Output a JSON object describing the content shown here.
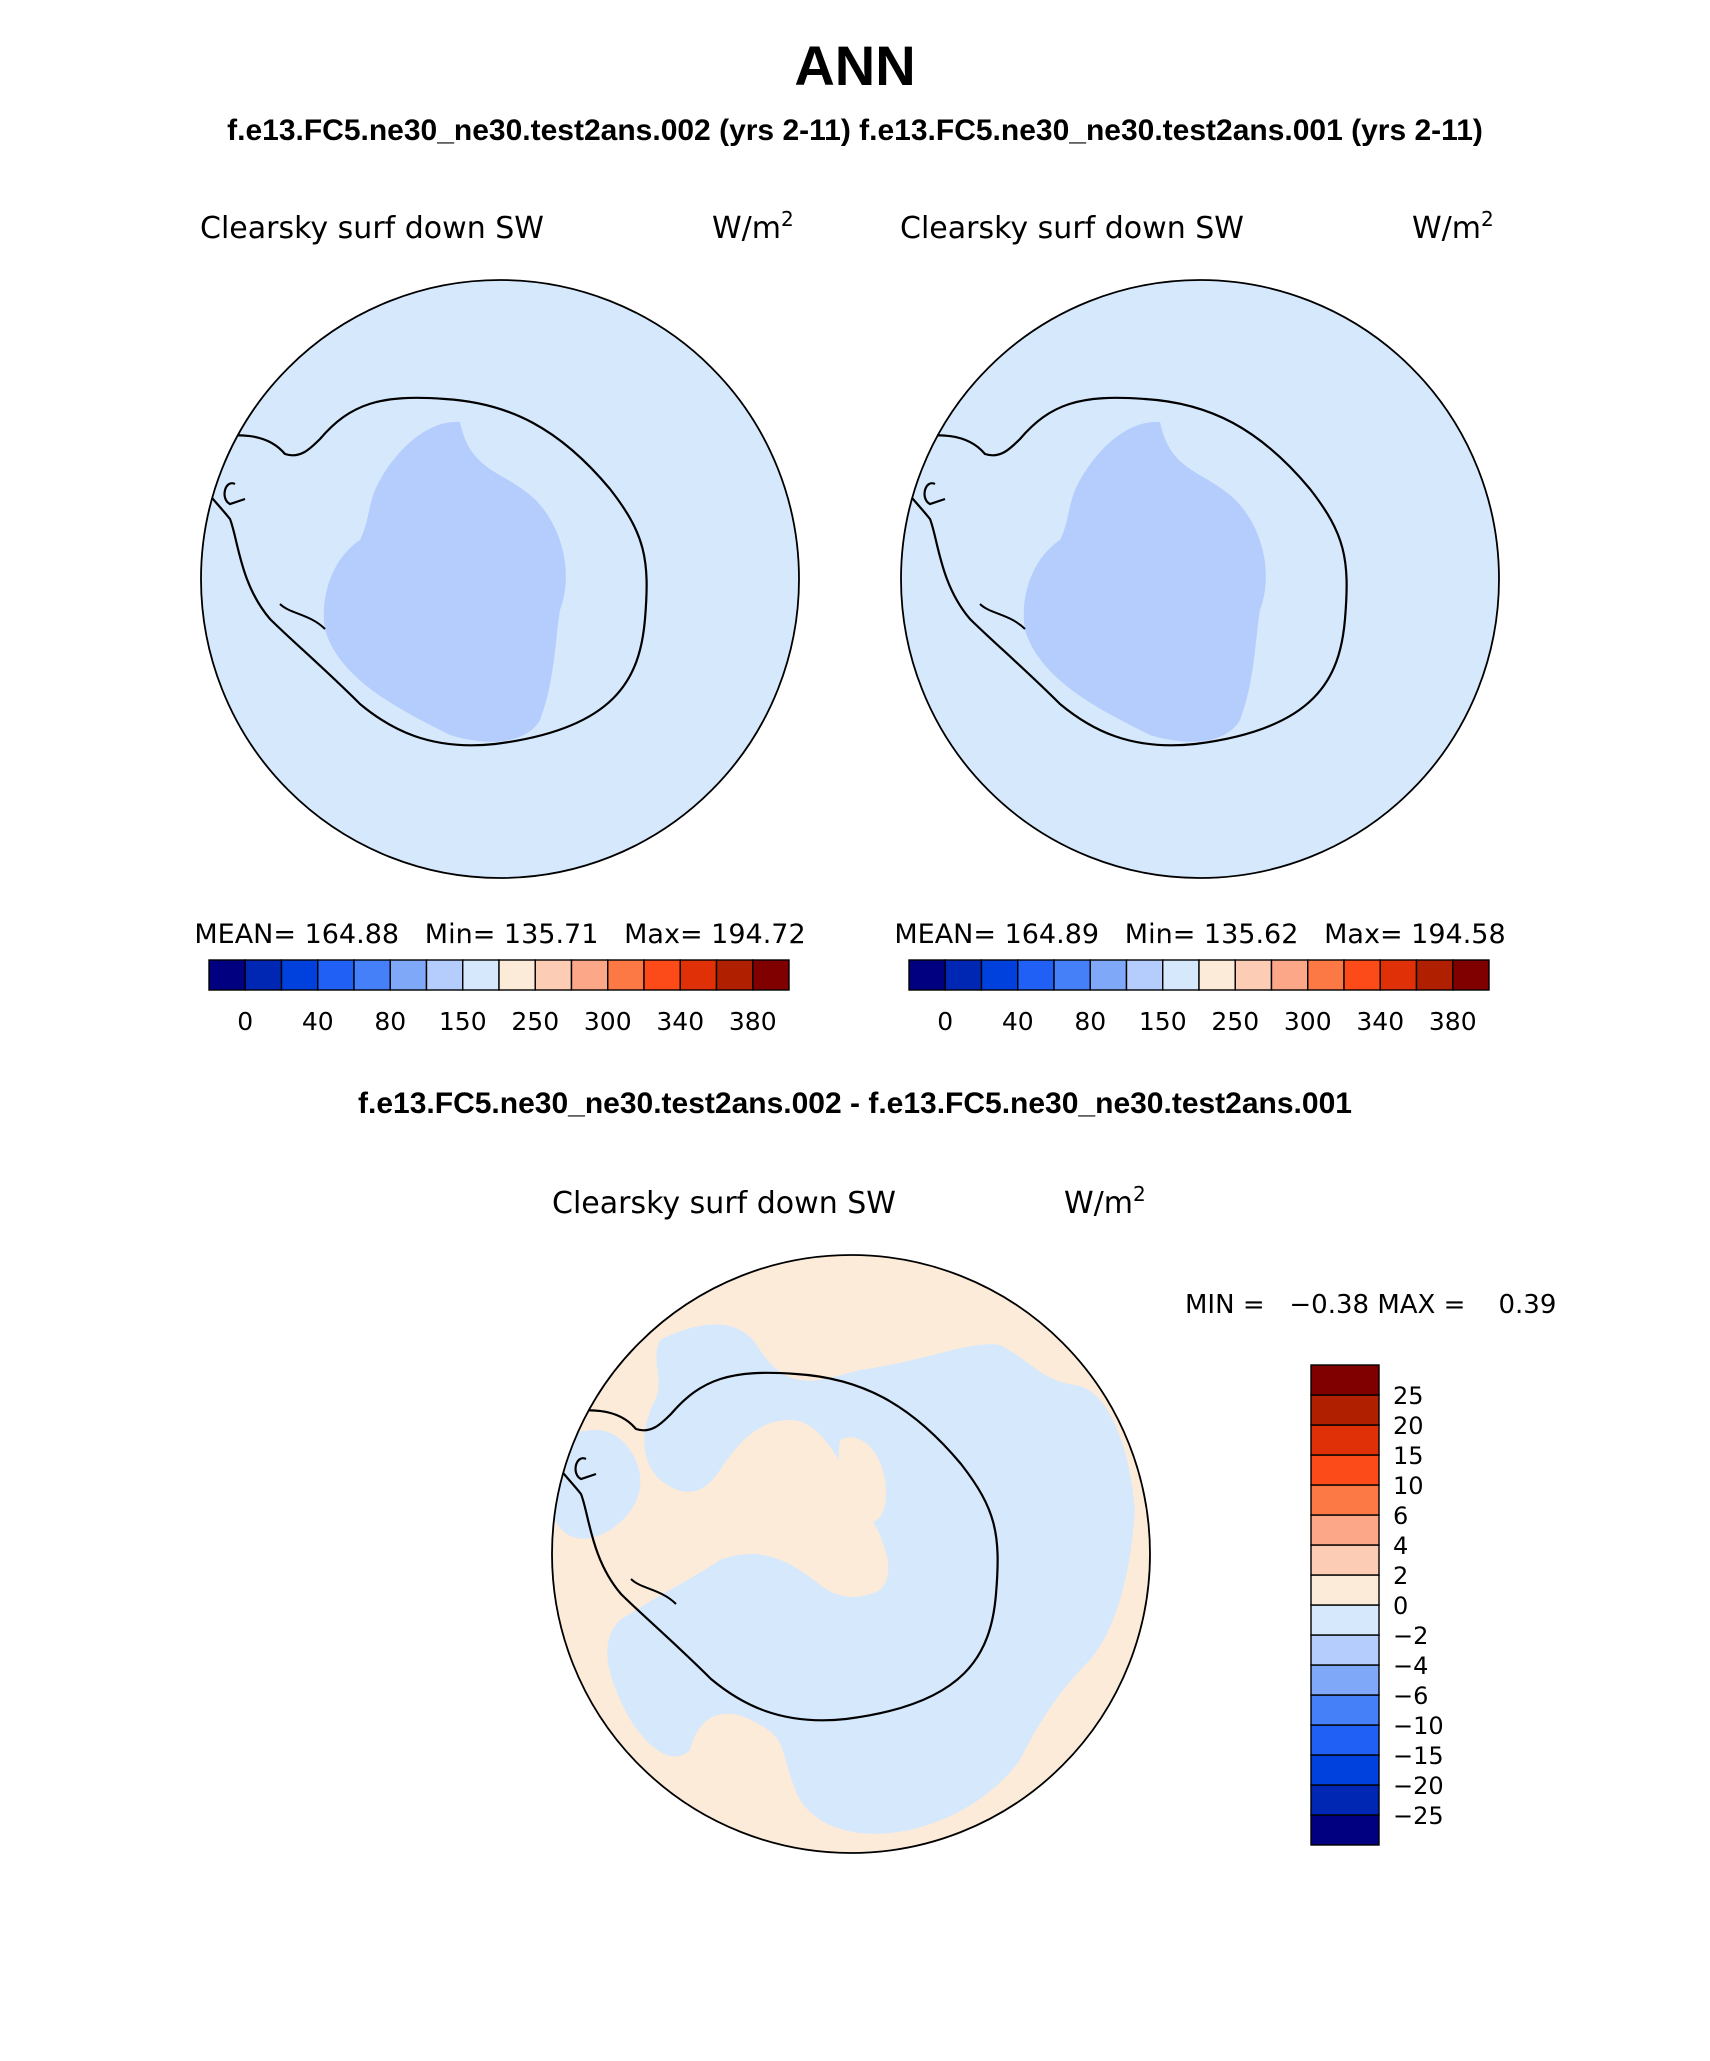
{
  "figure": {
    "season": "ANN",
    "top_title": "f.e13.FC5.ne30_ne30.test2ans.002 (yrs 2-11) f.e13.FC5.ne30_ne30.test2ans.001 (yrs 2-11)",
    "diff_title": "f.e13.FC5.ne30_ne30.test2ans.002 - f.e13.FC5.ne30_ne30.test2ans.001"
  },
  "panels": [
    {
      "variable": "Clearsky surf down SW",
      "units_base": "W/m",
      "units_exp": "2",
      "stats": "MEAN= 164.88   Min= 135.71   Max= 194.72"
    },
    {
      "variable": "Clearsky surf down SW",
      "units_base": "W/m",
      "units_exp": "2",
      "stats": "MEAN= 164.89   Min= 135.62   Max= 194.58"
    }
  ],
  "diff_panel": {
    "variable": "Clearsky surf down SW",
    "units_base": "W/m",
    "units_exp": "2",
    "minmax": "MIN =   −0.38 MAX =    0.39"
  },
  "colors": {
    "field_high": "#d6e8fc",
    "field_low": "#b5cdfc",
    "diff_pos": "#fdebd9",
    "diff_neg": "#d6e8fc",
    "outline": "#000000"
  },
  "chart_data": [
    {
      "type": "heatmap",
      "name": "top-colorbar",
      "orientation": "horizontal",
      "colors": [
        "#000080",
        "#0026b4",
        "#0040dc",
        "#2060f4",
        "#4580f8",
        "#80a8f8",
        "#b5cdfc",
        "#d6e8fc",
        "#fdebd9",
        "#fcccb4",
        "#fca888",
        "#fc7845",
        "#fc4a18",
        "#e03008",
        "#b02000",
        "#800000"
      ],
      "ticks": [
        "0",
        "40",
        "80",
        "150",
        "250",
        "300",
        "340",
        "380"
      ]
    },
    {
      "type": "heatmap",
      "name": "diff-colorbar",
      "orientation": "vertical",
      "colors": [
        "#000080",
        "#0026b4",
        "#0040dc",
        "#2060f4",
        "#4580f8",
        "#80a8f8",
        "#b5cdfc",
        "#d6e8fc",
        "#fdebd9",
        "#fcccb4",
        "#fca888",
        "#fc7845",
        "#fc4a18",
        "#e03008",
        "#b02000",
        "#800000"
      ],
      "ticks": [
        "−25",
        "−20",
        "−15",
        "−10",
        "−6",
        "−4",
        "−2",
        "0",
        "2",
        "4",
        "6",
        "10",
        "15",
        "20",
        "25"
      ]
    }
  ]
}
